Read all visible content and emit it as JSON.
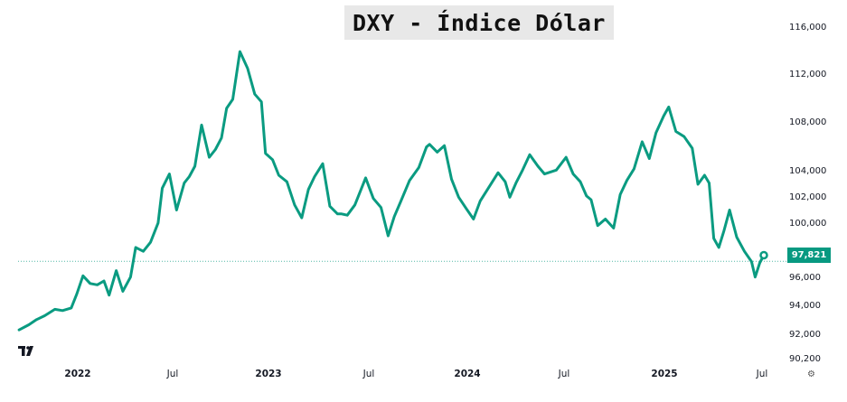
{
  "title": "DXY - Índice Dólar",
  "last_price_label": "97,821",
  "y_tick_labels": [
    "116,000",
    "112,000",
    "108,000",
    "104,000",
    "102,000",
    "100,000",
    "96,000",
    "94,000",
    "92,000",
    "90,200"
  ],
  "x_tick_labels": [
    {
      "text": "2022",
      "bold": true
    },
    {
      "text": "Jul",
      "bold": false
    },
    {
      "text": "2023",
      "bold": true
    },
    {
      "text": "Jul",
      "bold": false
    },
    {
      "text": "2024",
      "bold": true
    },
    {
      "text": "Jul",
      "bold": false
    },
    {
      "text": "2025",
      "bold": true
    },
    {
      "text": "Jul",
      "bold": false
    }
  ],
  "colors": {
    "line": "#0a9b81",
    "price_tag": "#089981",
    "title_bg": "#e8e8e8"
  },
  "icons": {
    "logo": "tradingview-logo-icon",
    "settings": "gear-icon"
  },
  "chart_data": {
    "type": "line",
    "title": "DXY - Índice Dólar",
    "xlabel": "",
    "ylabel": "",
    "grid": false,
    "x_range": [
      "2021-07-20",
      "2025-08-10"
    ],
    "y_range": [
      90.2,
      116.0
    ],
    "last_value": 97.821,
    "series": [
      {
        "x": [
          "2021-07-22",
          "2021-08-10",
          "2021-08-25",
          "2021-09-10",
          "2021-09-30",
          "2021-10-15",
          "2021-11-01",
          "2021-11-12",
          "2021-11-24",
          "2021-12-08",
          "2021-12-22",
          "2022-01-04",
          "2022-01-14",
          "2022-01-28",
          "2022-02-10",
          "2022-02-25",
          "2022-03-07",
          "2022-03-22",
          "2022-04-05",
          "2022-04-20",
          "2022-04-28",
          "2022-05-12",
          "2022-05-26",
          "2022-06-10",
          "2022-06-20",
          "2022-07-01",
          "2022-07-14",
          "2022-07-29",
          "2022-08-10",
          "2022-08-22",
          "2022-09-01",
          "2022-09-13",
          "2022-09-27",
          "2022-10-12",
          "2022-10-26",
          "2022-11-08",
          "2022-11-16",
          "2022-11-30",
          "2022-12-12",
          "2022-12-28",
          "2023-01-12",
          "2023-01-26",
          "2023-02-08",
          "2023-02-20",
          "2023-03-08",
          "2023-03-22",
          "2023-04-06",
          "2023-04-14",
          "2023-04-25",
          "2023-05-10",
          "2023-05-31",
          "2023-06-15",
          "2023-06-30",
          "2023-07-14",
          "2023-07-26",
          "2023-08-08",
          "2023-08-25",
          "2023-09-12",
          "2023-09-27",
          "2023-10-03",
          "2023-10-18",
          "2023-11-01",
          "2023-11-15",
          "2023-11-29",
          "2023-12-14",
          "2023-12-28",
          "2024-01-10",
          "2024-01-26",
          "2024-02-14",
          "2024-02-28",
          "2024-03-08",
          "2024-03-20",
          "2024-04-02",
          "2024-04-16",
          "2024-05-02",
          "2024-05-15",
          "2024-06-07",
          "2024-06-26",
          "2024-07-10",
          "2024-07-24",
          "2024-08-05",
          "2024-08-14",
          "2024-08-27",
          "2024-09-11",
          "2024-09-27",
          "2024-10-10",
          "2024-10-23",
          "2024-11-06",
          "2024-11-22",
          "2024-12-06",
          "2024-12-19",
          "2025-01-03",
          "2025-01-13",
          "2025-01-27",
          "2025-02-12",
          "2025-02-28",
          "2025-03-11",
          "2025-03-24",
          "2025-04-02",
          "2025-04-11",
          "2025-04-21",
          "2025-05-01",
          "2025-05-12",
          "2025-05-26",
          "2025-06-10",
          "2025-06-24",
          "2025-07-01",
          "2025-07-10",
          "2025-07-18"
        ],
        "y": [
          92.5,
          92.9,
          93.3,
          93.6,
          94.1,
          94.0,
          94.2,
          95.3,
          96.7,
          96.1,
          96.0,
          96.3,
          95.2,
          97.1,
          95.5,
          96.6,
          98.9,
          98.6,
          99.3,
          100.8,
          103.5,
          104.6,
          101.8,
          103.9,
          104.4,
          105.2,
          108.4,
          105.9,
          106.5,
          107.4,
          109.7,
          110.4,
          114.1,
          112.8,
          110.8,
          110.2,
          106.2,
          105.7,
          104.5,
          104.0,
          102.2,
          101.2,
          103.4,
          104.4,
          105.4,
          102.1,
          101.5,
          101.5,
          101.4,
          102.2,
          104.3,
          102.7,
          102.0,
          99.8,
          101.3,
          102.5,
          104.1,
          105.1,
          106.7,
          106.9,
          106.3,
          106.8,
          104.2,
          102.8,
          101.9,
          101.1,
          102.5,
          103.5,
          104.7,
          104.0,
          102.8,
          103.9,
          104.9,
          106.1,
          105.2,
          104.6,
          104.9,
          105.9,
          104.6,
          104.0,
          102.9,
          102.6,
          100.6,
          101.1,
          100.4,
          103.0,
          104.1,
          105.0,
          107.1,
          105.8,
          107.8,
          109.1,
          109.8,
          107.9,
          107.5,
          106.6,
          103.8,
          104.5,
          103.9,
          99.6,
          98.9,
          100.2,
          101.8,
          99.7,
          98.6,
          97.8,
          96.6,
          97.7,
          98.3
        ]
      }
    ]
  }
}
